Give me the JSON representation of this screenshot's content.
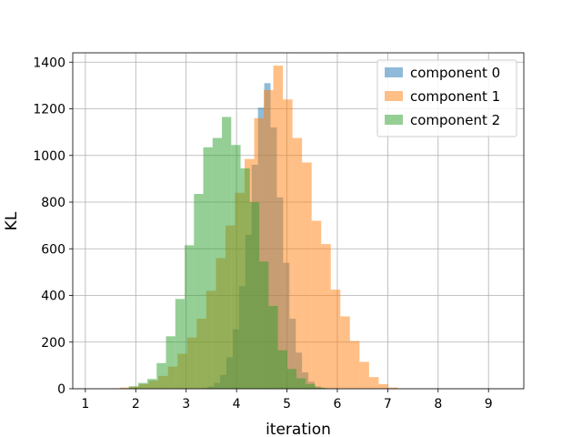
{
  "chart_data": {
    "type": "histogram",
    "title": "",
    "xlabel": "iteration",
    "ylabel": "KL",
    "xlim": [
      0.75,
      9.7
    ],
    "ylim": [
      0,
      1400
    ],
    "xticks": [
      1,
      2,
      3,
      4,
      5,
      6,
      7,
      8,
      9
    ],
    "yticks": [
      0,
      200,
      400,
      600,
      800,
      1000,
      1200,
      1400
    ],
    "grid": true,
    "legend_position": "top-right",
    "series": [
      {
        "name": "component 0",
        "color": "#1f77b4",
        "bin_start": 3.3,
        "bin_width": 0.125,
        "counts": [
          3,
          10,
          25,
          60,
          135,
          255,
          440,
          660,
          960,
          1205,
          1310,
          1120,
          820,
          540,
          300,
          155,
          70,
          30,
          10,
          3
        ]
      },
      {
        "name": "component 1",
        "color": "#ff7f0e",
        "bin_start": 1.5,
        "bin_width": 0.19,
        "counts": [
          2,
          5,
          10,
          20,
          35,
          55,
          95,
          150,
          220,
          300,
          420,
          560,
          700,
          840,
          985,
          1160,
          1280,
          1385,
          1240,
          1075,
          970,
          720,
          620,
          425,
          310,
          205,
          115,
          50,
          20,
          5
        ]
      },
      {
        "name": "component 2",
        "color": "#2ca02c",
        "bin_start": 0.75,
        "bin_width": 0.185,
        "counts": [
          0,
          0,
          0,
          0,
          0,
          2,
          10,
          25,
          42,
          110,
          225,
          385,
          615,
          835,
          1035,
          1075,
          1165,
          1045,
          945,
          800,
          545,
          355,
          165,
          85,
          45,
          20,
          5,
          2
        ]
      }
    ]
  }
}
